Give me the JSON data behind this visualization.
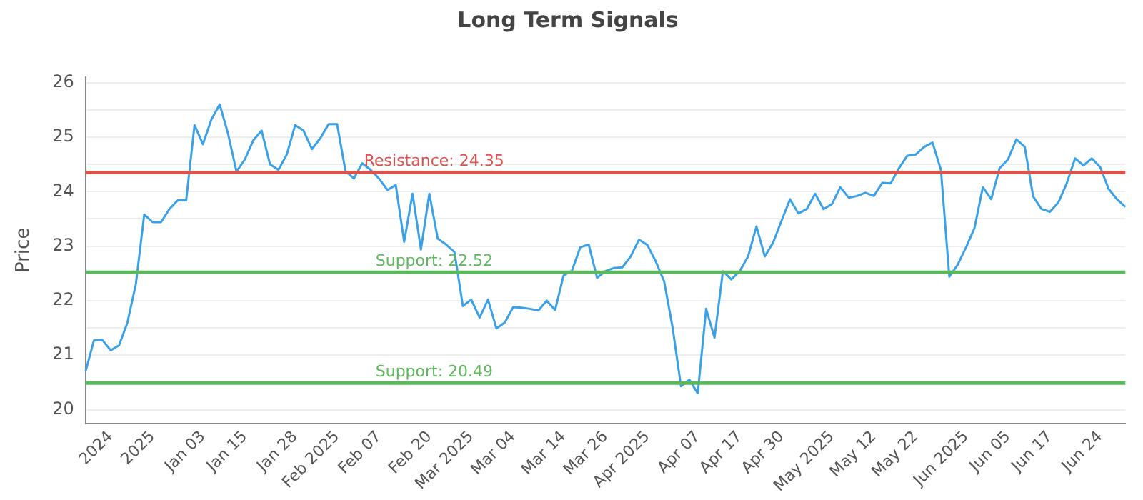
{
  "chart_data": {
    "type": "line",
    "title": "Long Term Signals",
    "ylabel": "Price",
    "categories": [
      null,
      null,
      null,
      "2024",
      null,
      null,
      null,
      null,
      "2025",
      null,
      null,
      null,
      null,
      null,
      "Jan 03",
      null,
      null,
      null,
      null,
      "Jan 15",
      null,
      null,
      null,
      null,
      null,
      "Jan 28",
      null,
      null,
      null,
      null,
      "Feb 2025",
      null,
      null,
      null,
      null,
      "Feb 07",
      null,
      null,
      null,
      null,
      null,
      "Feb 20",
      null,
      null,
      null,
      null,
      "Mar 2025",
      null,
      null,
      null,
      null,
      "Mar 04",
      null,
      null,
      null,
      null,
      null,
      "Mar 14",
      null,
      null,
      null,
      null,
      "Mar 26",
      null,
      null,
      null,
      null,
      "Apr 2025",
      null,
      null,
      null,
      null,
      null,
      "Apr 07",
      null,
      null,
      null,
      null,
      "Apr 17",
      null,
      null,
      null,
      null,
      "Apr 30",
      null,
      null,
      null,
      null,
      null,
      "May 2025",
      null,
      null,
      null,
      null,
      "May 12",
      null,
      null,
      null,
      null,
      "May 22",
      null,
      null,
      null,
      null,
      null,
      "Jun 2025",
      null,
      null,
      null,
      null,
      "Jun 05",
      null,
      null,
      null,
      null,
      "Jun 17",
      null,
      null,
      null,
      null,
      null,
      "Jun 24",
      null,
      null,
      null
    ],
    "series": [
      {
        "color": "#3aa0e8",
        "values": [
          20.7,
          21.27,
          21.28,
          21.09,
          21.18,
          21.6,
          22.3,
          23.58,
          23.44,
          23.44,
          23.68,
          23.84,
          23.84,
          25.22,
          24.87,
          25.32,
          25.6,
          25.06,
          24.37,
          24.59,
          24.94,
          25.12,
          24.5,
          24.4,
          24.68,
          25.22,
          25.12,
          24.78,
          24.98,
          25.24,
          25.24,
          24.38,
          24.24,
          24.52,
          24.4,
          24.24,
          24.03,
          24.12,
          23.08,
          23.96,
          22.94,
          23.96,
          23.14,
          23.03,
          22.89,
          21.9,
          22.02,
          21.69,
          22.02,
          21.49,
          21.6,
          21.88,
          21.87,
          21.85,
          21.82,
          22.0,
          21.83,
          22.46,
          22.55,
          22.98,
          23.03,
          22.42,
          22.54,
          22.6,
          22.61,
          22.81,
          23.12,
          23.02,
          22.72,
          22.35,
          21.51,
          20.43,
          20.55,
          20.3,
          21.85,
          21.32,
          22.54,
          22.39,
          22.54,
          22.81,
          23.36,
          22.81,
          23.07,
          23.47,
          23.86,
          23.6,
          23.68,
          23.96,
          23.68,
          23.77,
          24.08,
          23.89,
          23.92,
          23.98,
          23.92,
          24.16,
          24.15,
          24.43,
          24.66,
          24.68,
          24.82,
          24.9,
          24.4,
          22.44,
          22.66,
          22.98,
          23.33,
          24.08,
          23.86,
          24.43,
          24.59,
          24.96,
          24.82,
          23.91,
          23.68,
          23.63,
          23.8,
          24.15,
          24.61,
          24.48,
          24.61,
          24.45,
          24.05,
          23.86,
          23.72
        ]
      }
    ],
    "ylim": [
      19.75,
      26.1
    ],
    "yticks": [
      20,
      21,
      {
        "value": 21.5,
        "label": null
      },
      22,
      23,
      {
        "value": 23.5,
        "label": null
      },
      24,
      {
        "value": 24.5,
        "label": null
      },
      25,
      {
        "value": 25.5,
        "label": null
      },
      26
    ],
    "ref_lines": [
      {
        "axis": "y",
        "value": 24.35,
        "label": "Resistance: 24.35",
        "color": "#d9534f"
      },
      {
        "axis": "y",
        "value": 22.52,
        "label": "Support: 22.52",
        "color": "#5cb85c"
      },
      {
        "axis": "y",
        "value": 20.49,
        "label": "Support: 20.49",
        "color": "#5cb85c"
      }
    ],
    "grid": "y",
    "legend": false,
    "marker": "none",
    "line_style": "solid"
  }
}
